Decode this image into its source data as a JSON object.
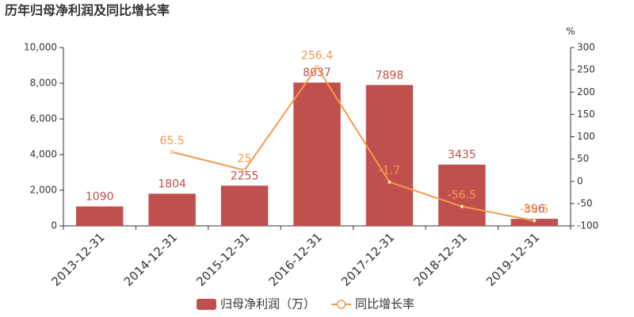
{
  "chart_data": {
    "type": "bar",
    "title": "历年归母净利润及同比增长率",
    "categories": [
      "2013-12-31",
      "2014-12-31",
      "2015-12-31",
      "2016-12-31",
      "2017-12-31",
      "2018-12-31",
      "2019-12-31"
    ],
    "series": [
      {
        "name": "归母净利润（万）",
        "type": "bar",
        "color": "#c0504d",
        "values": [
          1090,
          1804,
          2255,
          8037,
          7898,
          3435,
          396
        ]
      },
      {
        "name": "同比增长率",
        "type": "line",
        "axis": "y2",
        "color": "#f5994e",
        "values": [
          null,
          65.5,
          25,
          256.4,
          -1.7,
          -56.5,
          -88.5
        ]
      }
    ],
    "ylim": [
      0,
      10000
    ],
    "yticks": [
      0,
      {
        "value": 2000,
        "label": "2,000"
      },
      {
        "value": 4000,
        "label": "4,000"
      },
      {
        "value": 6000,
        "label": "6,000"
      },
      {
        "value": 8000,
        "label": "8,000"
      },
      {
        "value": 10000,
        "label": "10,000"
      }
    ],
    "y2lim": [
      -100,
      300
    ],
    "y2ticks": [
      -100,
      -50,
      0,
      50,
      100,
      150,
      200,
      250,
      300
    ],
    "y2label": "%",
    "grid": false,
    "legend": "bottom"
  }
}
